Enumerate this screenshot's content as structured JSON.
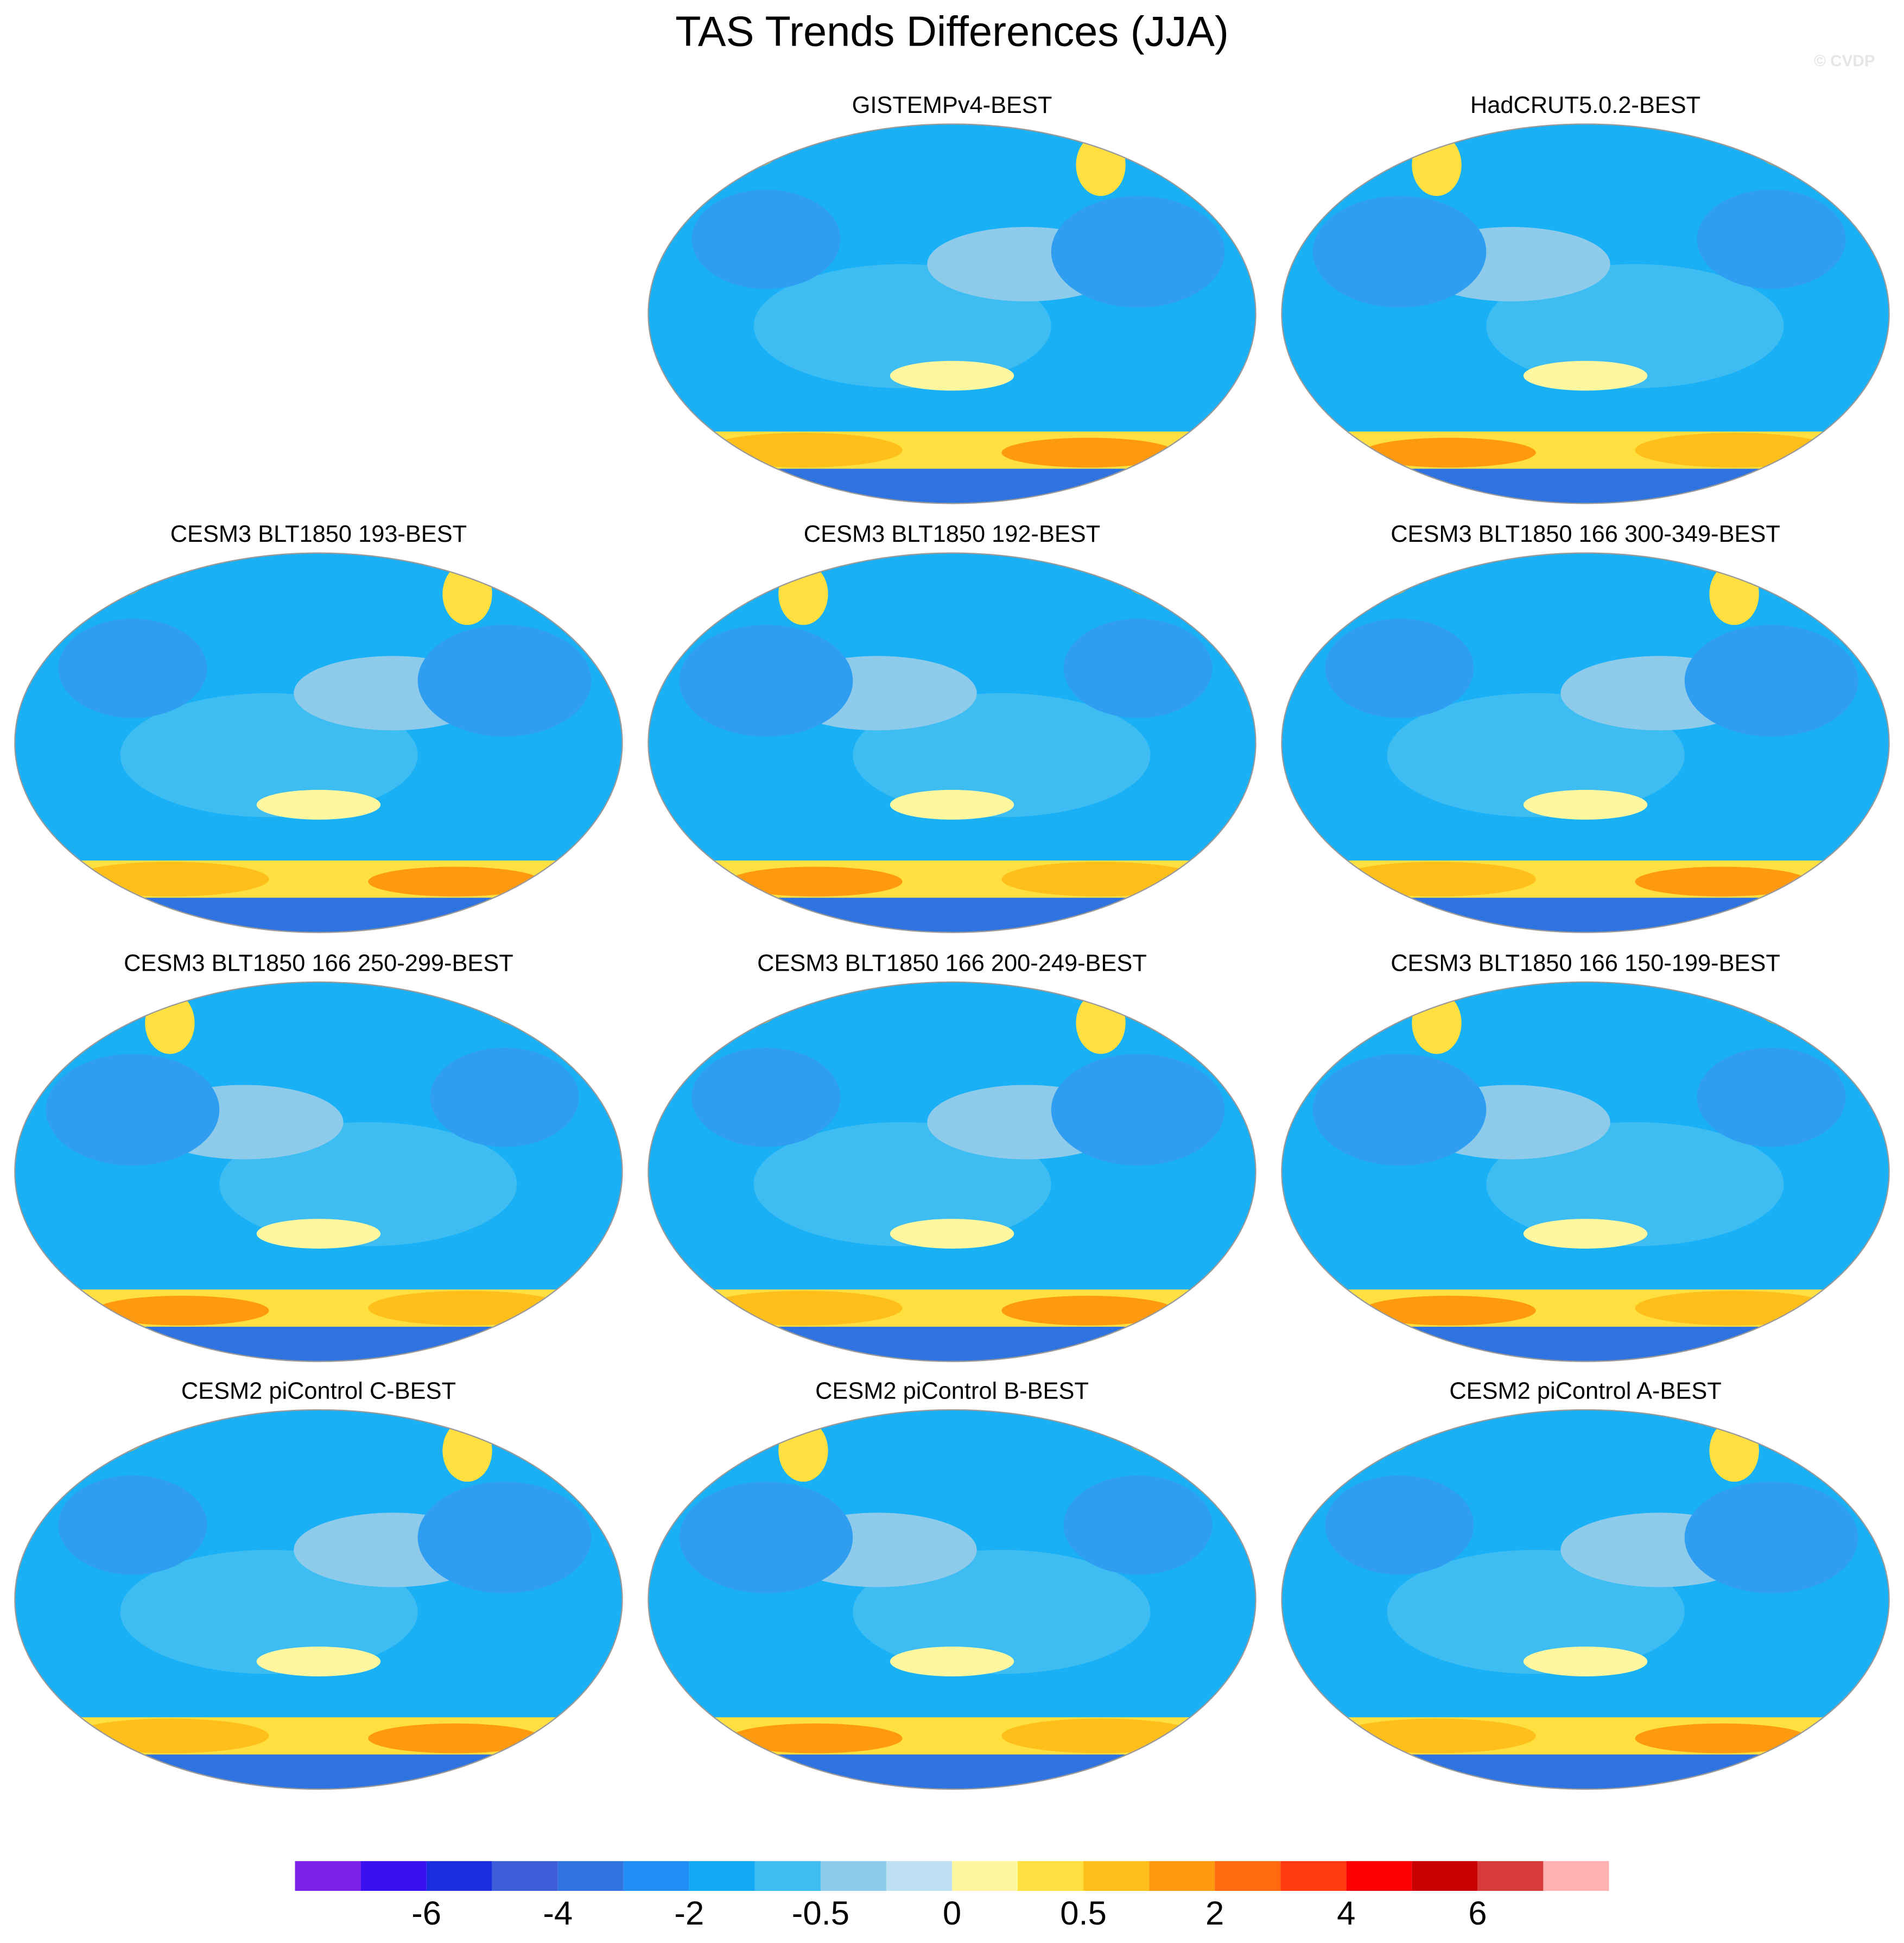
{
  "title": "TAS Trends Differences (JJA)",
  "watermark": "© CVDP",
  "panels": [
    {
      "title": null
    },
    {
      "title": "GISTEMPv4-BEST"
    },
    {
      "title": "HadCRUT5.0.2-BEST"
    },
    {
      "title": "CESM3 BLT1850 193-BEST"
    },
    {
      "title": "CESM3 BLT1850 192-BEST"
    },
    {
      "title": "CESM3 BLT1850 166 300-349-BEST"
    },
    {
      "title": "CESM3 BLT1850 166 250-299-BEST"
    },
    {
      "title": "CESM3 BLT1850 166 200-249-BEST"
    },
    {
      "title": "CESM3 BLT1850 166 150-199-BEST"
    },
    {
      "title": "CESM2 piControl C-BEST"
    },
    {
      "title": "CESM2 piControl B-BEST"
    },
    {
      "title": "CESM2 piControl A-BEST"
    }
  ],
  "colorbar": {
    "colors": [
      "#7c1fe8",
      "#3a10f0",
      "#1a2ee0",
      "#3b5ed8",
      "#2f73e0",
      "#1e8ef5",
      "#12aaf5",
      "#3dbdf2",
      "#8ecbea",
      "#bde0f5",
      "#fff7a0",
      "#ffe040",
      "#ffbf1a",
      "#ff9a10",
      "#ff6a10",
      "#ff3a10",
      "#ff0000",
      "#c80000",
      "#d83a3a",
      "#ffb0b0"
    ],
    "labels": [
      "-6",
      "-4",
      "-2",
      "-0.5",
      "0",
      "0.5",
      "2",
      "4",
      "6"
    ]
  }
}
